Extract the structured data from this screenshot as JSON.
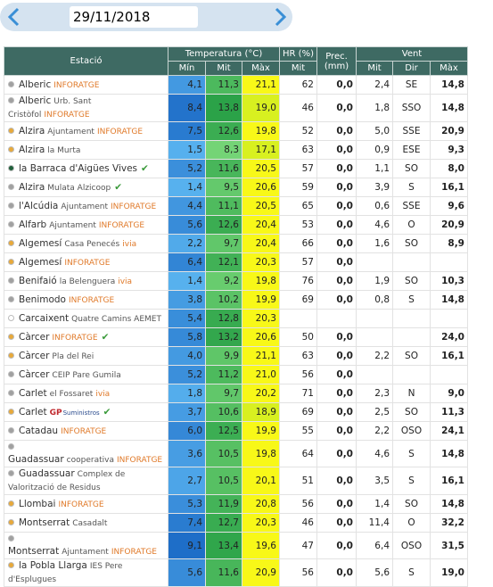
{
  "header": {
    "date": "29/11/2018"
  },
  "table": {
    "columns": [
      "Estació",
      "Temperatura (°C)",
      "HR (%)",
      "Prec. (mm)",
      "Vent"
    ],
    "subcolumns": [
      "Mín",
      "Mit",
      "Màx",
      "Mit",
      "Mit",
      "Dir",
      "Màx"
    ],
    "rows": [
      {
        "name": "Alberic",
        "net": "INFORATGE",
        "dot": "#a0a0a0",
        "values": [
          "4,1",
          "11,3",
          "21,1",
          "62",
          "0,0",
          "2,4",
          "SE",
          "14,8"
        ]
      },
      {
        "name": "Alberic",
        "sub": "Urb. Sant Cristòfol",
        "net": "INFORATGE",
        "dot": "#a0a0a0",
        "values": [
          "8,4",
          "13,8",
          "19,0",
          "46",
          "0,0",
          "1,8",
          "SSO",
          "14,8"
        ]
      },
      {
        "name": "Alzira",
        "sub": "Ajuntament",
        "net": "INFORATGE",
        "dot": "#e8a93a",
        "values": [
          "7,5",
          "12,6",
          "19,8",
          "52",
          "0,0",
          "5,0",
          "SSE",
          "20,9"
        ]
      },
      {
        "name": "Alzira",
        "sub": "la Murta",
        "dot": "#e8a93a",
        "values": [
          "1,5",
          "8,3",
          "17,1",
          "63",
          "0,0",
          "0,9",
          "ESE",
          "9,3"
        ]
      },
      {
        "name": "la Barraca d'Aigües Vives",
        "check": true,
        "dot": "#1f5f3a",
        "values": [
          "5,2",
          "11,6",
          "20,5",
          "57",
          "0,0",
          "1,1",
          "SO",
          "8,0"
        ]
      },
      {
        "name": "Alzira",
        "sub": "Mulata Alzicoop",
        "check": true,
        "dot": "#a0a0a0",
        "values": [
          "1,4",
          "9,5",
          "20,6",
          "59",
          "0,0",
          "3,9",
          "S",
          "16,1"
        ]
      },
      {
        "name": "l'Alcúdia",
        "sub": "Ajuntament",
        "net": "INFORATGE",
        "dot": "#a0a0a0",
        "values": [
          "4,4",
          "11,1",
          "20,5",
          "65",
          "0,0",
          "0,6",
          "SSE",
          "9,6"
        ]
      },
      {
        "name": "Alfarb",
        "sub": "Ajuntament",
        "net": "INFORATGE",
        "dot": "#a0a0a0",
        "values": [
          "5,6",
          "12,6",
          "20,4",
          "53",
          "0,0",
          "4,6",
          "O",
          "20,9"
        ]
      },
      {
        "name": "Algemesí",
        "sub": "Casa Penecés",
        "net": "ivia",
        "dot": "#e8a93a",
        "values": [
          "2,2",
          "9,7",
          "20,4",
          "66",
          "0,0",
          "1,6",
          "SO",
          "8,9"
        ]
      },
      {
        "name": "Algemesí",
        "net": "INFORATGE",
        "dot": "#e8a93a",
        "values": [
          "6,4",
          "12,1",
          "20,3",
          "57",
          "0,0",
          null,
          null,
          null
        ]
      },
      {
        "name": "Benifaió",
        "sub": "la Belenguera",
        "net": "ivia",
        "dot": "#a0a0a0",
        "values": [
          "1,4",
          "9,2",
          "19,8",
          "76",
          "0,0",
          "1,9",
          "SO",
          "10,3"
        ]
      },
      {
        "name": "Benimodo",
        "net": "INFORATGE",
        "dot": "#a0a0a0",
        "values": [
          "3,8",
          "10,2",
          "19,9",
          "69",
          "0,0",
          "0,8",
          "S",
          "14,8"
        ]
      },
      {
        "name": "Carcaixent",
        "sub": "Quatre Camins AEMET",
        "dot": "#ffffff",
        "values": [
          "5,4",
          "12,8",
          "20,3",
          null,
          null,
          null,
          null,
          null
        ]
      },
      {
        "name": "Càrcer",
        "net": "INFORATGE",
        "check": true,
        "dot": "#e8a93a",
        "values": [
          "5,8",
          "13,2",
          "20,6",
          "50",
          "0,0",
          null,
          null,
          "24,0"
        ]
      },
      {
        "name": "Càrcer",
        "sub": "Pla del Rei",
        "dot": "#e8a93a",
        "values": [
          "4,0",
          "9,9",
          "21,1",
          "63",
          "0,0",
          "2,2",
          "SO",
          "16,1"
        ]
      },
      {
        "name": "Càrcer",
        "sub": "CEIP Pare Gumila",
        "dot": "#a0a0a0",
        "values": [
          "5,2",
          "11,2",
          "21,0",
          "56",
          "0,0",
          null,
          null,
          null
        ]
      },
      {
        "name": "Carlet",
        "sub": "el Fossaret",
        "net": "ivia",
        "dot": "#a0a0a0",
        "values": [
          "1,8",
          "9,7",
          "20,2",
          "71",
          "0,0",
          "2,3",
          "N",
          "9,0"
        ]
      },
      {
        "name": "Carlet",
        "net": "GP",
        "sub": "Suministros",
        "check": true,
        "dot": "#e8a93a",
        "values": [
          "3,7",
          "10,6",
          "18,9",
          "69",
          "0,0",
          "2,5",
          "SO",
          "11,3"
        ]
      },
      {
        "name": "Catadau",
        "net": "INFORATGE",
        "dot": "#a0a0a0",
        "values": [
          "6,0",
          "12,5",
          "19,9",
          "55",
          "0,0",
          "2,2",
          "OSO",
          "24,1"
        ]
      },
      {
        "name": "Guadassuar",
        "sub": "cooperativa",
        "net": "INFORATGE",
        "dot": "#a0a0a0",
        "values": [
          "3,6",
          "10,5",
          "19,8",
          "64",
          "0,0",
          "4,6",
          "S",
          "14,8"
        ]
      },
      {
        "name": "Guadassuar",
        "sub": "Complex de Valorització de Residus",
        "dot": "#a0a0a0",
        "values": [
          "2,7",
          "10,5",
          "20,1",
          "51",
          "0,0",
          "3,5",
          "S",
          "16,1"
        ]
      },
      {
        "name": "Llombai",
        "net": "INFORATGE",
        "dot": "#e8a93a",
        "values": [
          "5,3",
          "11,9",
          "20,8",
          "56",
          "0,0",
          "1,4",
          "SO",
          "14,8"
        ]
      },
      {
        "name": "Montserrat",
        "sub": "Casadalt",
        "dot": "#e8a93a",
        "values": [
          "7,4",
          "12,7",
          "20,3",
          "46",
          "0,0",
          "11,4",
          "O",
          "32,2"
        ]
      },
      {
        "name": "Montserrat",
        "sub": "Ajuntament",
        "net": "INFORATGE",
        "dot": "#a0a0a0",
        "values": [
          "9,1",
          "13,4",
          "19,6",
          "47",
          "0,0",
          "6,4",
          "OSO",
          "31,5"
        ]
      },
      {
        "name": "la Pobla Llarga",
        "sub": "IES Pere d'Esplugues",
        "dot": "#e8a93a",
        "values": [
          "5,6",
          "11,6",
          "20,9",
          "56",
          "0,0",
          "5,6",
          "S",
          "19,0"
        ]
      }
    ]
  }
}
